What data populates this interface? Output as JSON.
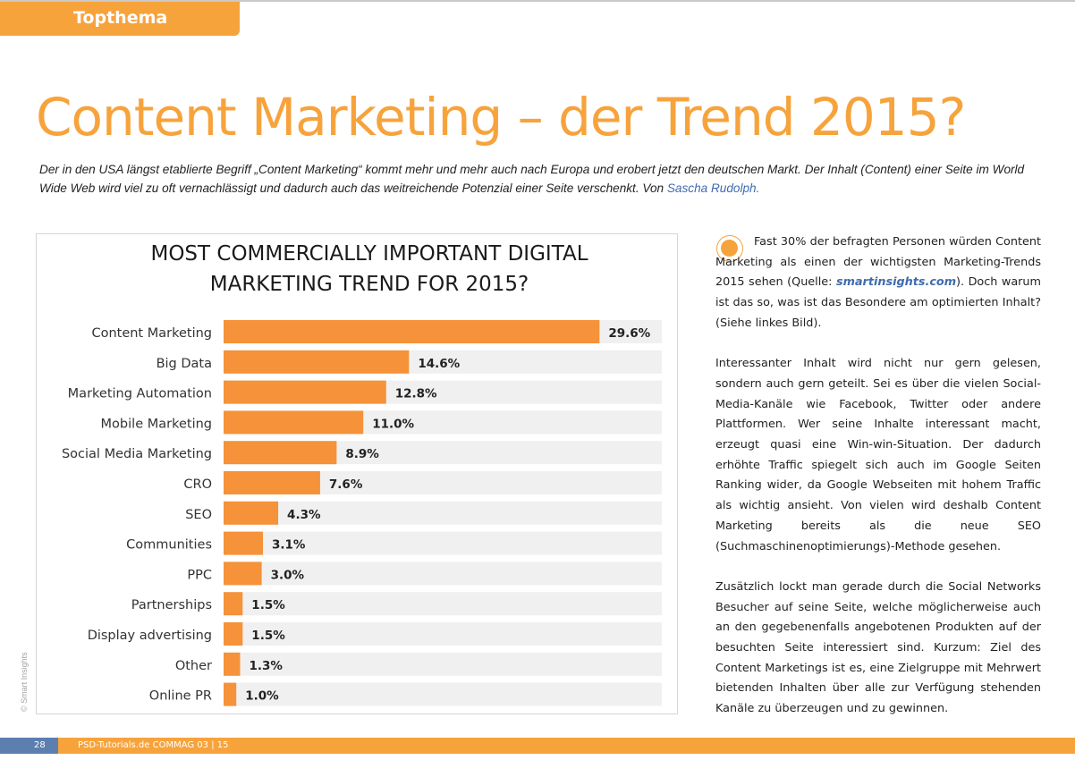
{
  "section_tag": "Topthema",
  "headline": "Content Marketing – der Trend 2015?",
  "lead": {
    "text": "Der in den USA längst etablierte Begriff „Content Marketing“ kommt mehr und mehr auch nach Europa und erobert jetzt den deutschen Markt. Der Inhalt (Content) einer Seite im World Wide Web wird viel zu oft vernachlässigt und dadurch auch das weitreichende Potenzial einer Seite verschenkt. Von ",
    "author": "Sascha Rudolph."
  },
  "colors": {
    "accent": "#f7a33c",
    "bar": "#f5923a",
    "track": "#f0f0f0",
    "link": "#3e6bb0"
  },
  "chart_credit": "© Smart Insights",
  "chart_data": {
    "type": "bar",
    "orientation": "horizontal",
    "title": [
      "MOST COMMERCIALLY IMPORTANT DIGITAL",
      "MARKETING TREND FOR 2015?"
    ],
    "categories": [
      "Content Marketing",
      "Big Data",
      "Marketing Automation",
      "Mobile Marketing",
      "Social Media Marketing",
      "CRO",
      "SEO",
      "Communities",
      "PPC",
      "Partnerships",
      "Display advertising",
      "Other",
      "Online PR"
    ],
    "values": [
      29.6,
      14.6,
      12.8,
      11.0,
      8.9,
      7.6,
      4.3,
      3.1,
      3.0,
      1.5,
      1.5,
      1.3,
      1.0
    ],
    "value_labels": [
      "29.6%",
      "14.6%",
      "12.8%",
      "11.0%",
      "8.9%",
      "7.6%",
      "4.3%",
      "3.1%",
      "3.0%",
      "1.5%",
      "1.5%",
      "1.3%",
      "1.0%"
    ],
    "xlim": [
      0,
      35
    ],
    "grid": false,
    "legend": "none"
  },
  "body": {
    "p1_before": "Fast 30% der befragten Personen würden Content Marketing als einen der wichtigsten Marketing-Trends 2015 sehen (Quelle: ",
    "p1_source": "smartinsights.com",
    "p1_after": "). Doch warum ist das so, was ist das Besondere am optimierten Inhalt? (Siehe linkes Bild).",
    "p2": "Interessanter Inhalt wird nicht nur gern gelesen, sondern auch gern geteilt. Sei es über die vielen Social-Media-Kanäle wie Facebook, Twitter oder andere Plattformen. Wer seine Inhalte interessant macht, erzeugt quasi eine Win-win-Situation. Der dadurch erhöhte Traffic spiegelt sich auch im Google Seiten Ranking wider, da Google Webseiten mit hohem Traffic als wichtig ansieht. Von vielen wird deshalb Content Marketing bereits als die neue SEO (Suchmaschinenoptimierungs)-Methode gesehen.",
    "p3": "Zusätzlich lockt man gerade durch die Social Networks Besucher auf seine Seite, welche möglicherweise auch an den gegebenenfalls angebotenen Produkten auf der besuchten Seite interessiert sind. Kurzum: Ziel des Content Marketings ist es, eine Zielgruppe mit Mehrwert bietenden Inhalten über alle zur Verfügung stehenden Kanäle zu überzeugen und zu gewinnen."
  },
  "footer": {
    "page_number": "28",
    "publication": "PSD-Tutorials.de   COMMAG 03 | 15"
  }
}
